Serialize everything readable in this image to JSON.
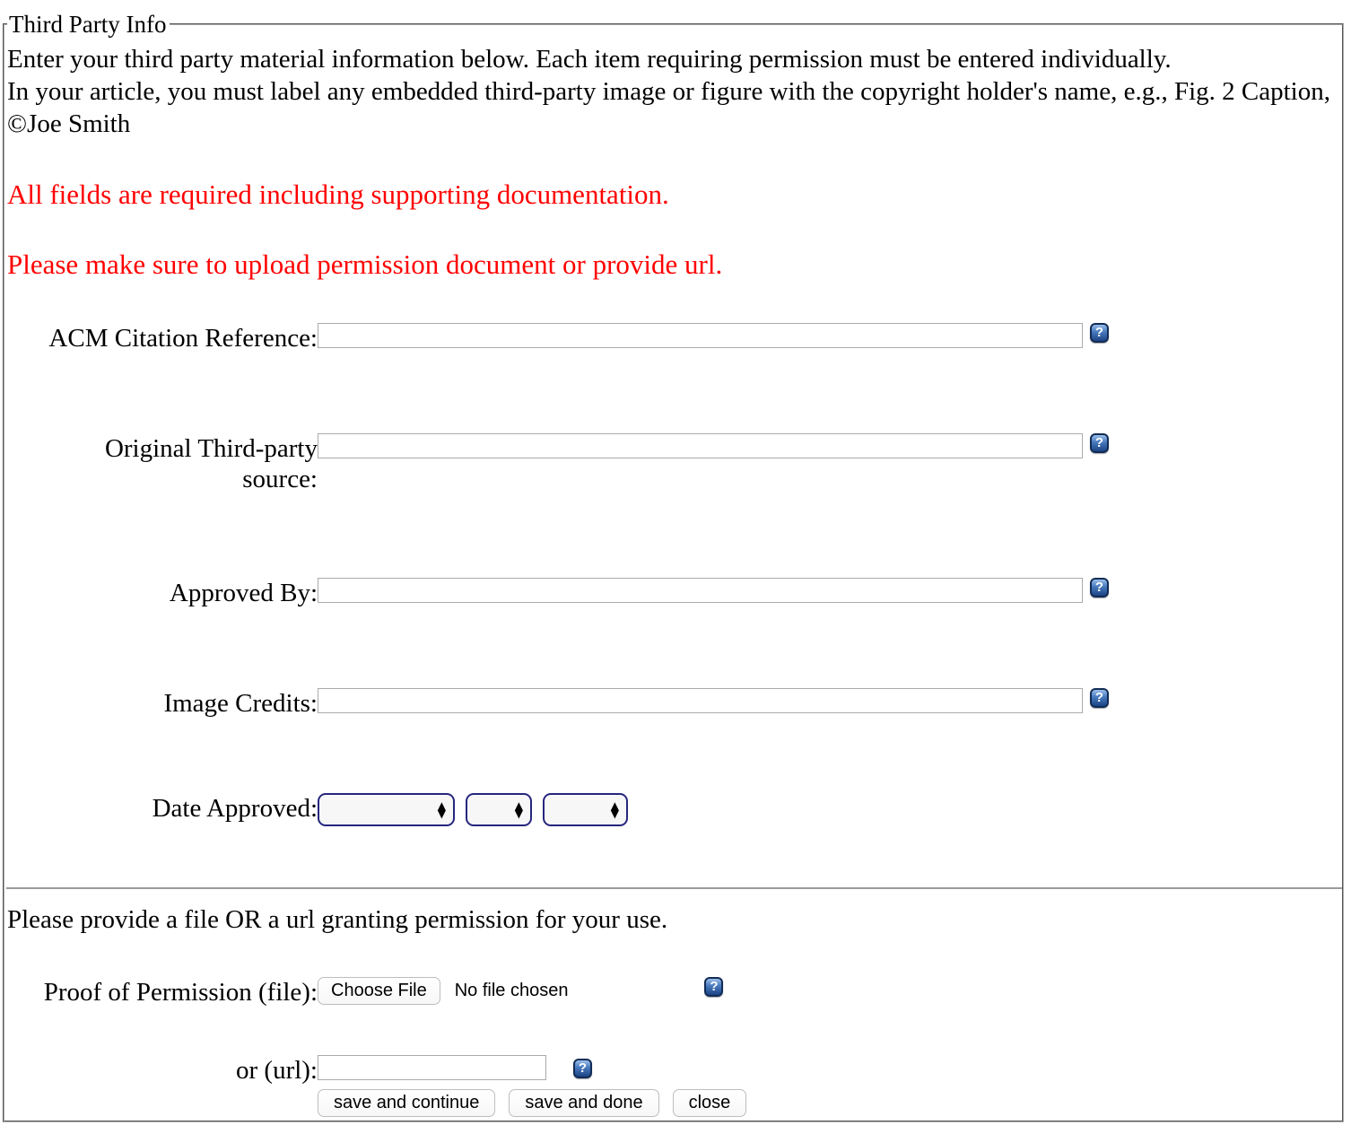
{
  "legend": "Third Party Info",
  "intro": {
    "line1": "Enter your third party material information below. Each item requiring permission must be entered individually.",
    "line2": "In your article, you must label any embedded third-party image or figure with the copyright holder's name, e.g., Fig. 2 Caption, ©Joe Smith"
  },
  "notices": [
    "All fields are required including supporting documentation.",
    "Please make sure to upload permission document or provide url."
  ],
  "fields": {
    "acm_citation": {
      "label": "ACM Citation Reference:",
      "value": ""
    },
    "original_source": {
      "label": "Original Third-party source:",
      "value": ""
    },
    "approved_by": {
      "label": "Approved By:",
      "value": ""
    },
    "image_credits": {
      "label": "Image Credits:",
      "value": ""
    },
    "date_approved": {
      "label": "Date Approved:",
      "month_value": "",
      "day_value": "",
      "year_value": ""
    }
  },
  "permission": {
    "instruction": "Please provide a file OR a url granting permission for your use.",
    "file_label": "Proof of Permission (file):",
    "choose_file_button": "Choose File",
    "no_file_text": "No file chosen",
    "url_label": "or (url):",
    "url_value": ""
  },
  "buttons": {
    "save_continue": "save and continue",
    "save_done": "save and done",
    "close": "close"
  },
  "icons": {
    "help": "?",
    "arrow_up": "▲",
    "arrow_down": "▼"
  },
  "colors": {
    "notice_red": "#ff0000",
    "select_border_navy": "#26267e",
    "help_icon_blue": "#1c4484",
    "border_gray": "#9b9b9b"
  }
}
